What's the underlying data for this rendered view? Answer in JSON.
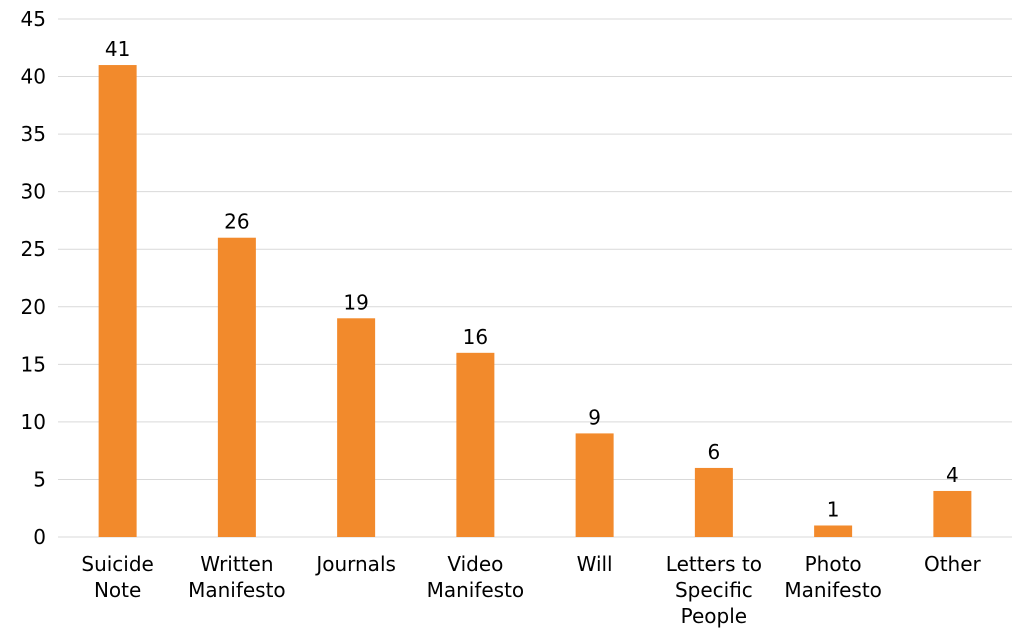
{
  "chart_data": {
    "type": "bar",
    "title": "",
    "xlabel": "",
    "ylabel": "",
    "categories": [
      [
        "Suicide",
        "Note"
      ],
      [
        "Written",
        "Manifesto"
      ],
      [
        "Journals"
      ],
      [
        "Video",
        "Manifesto"
      ],
      [
        "Will"
      ],
      [
        "Letters to",
        "Specific",
        "People"
      ],
      [
        "Photo",
        "Manifesto"
      ],
      [
        "Other"
      ]
    ],
    "values": [
      41,
      26,
      19,
      16,
      9,
      6,
      1,
      4
    ],
    "ylim": [
      0,
      45
    ],
    "yticks": [
      0,
      5,
      10,
      15,
      20,
      25,
      30,
      35,
      40,
      45
    ],
    "grid": true,
    "legend": "none",
    "bar_color": "#f28a2c",
    "grid_color": "#d9d9d9"
  }
}
